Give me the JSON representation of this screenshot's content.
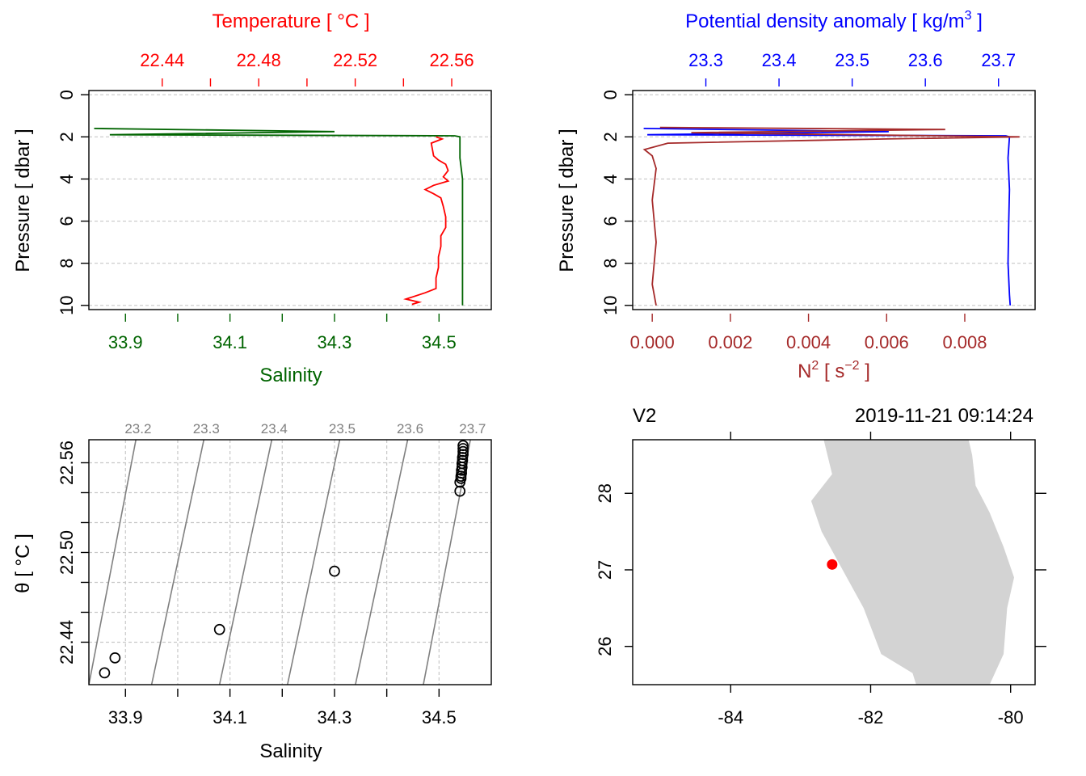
{
  "colors": {
    "temperature": "#ff0000",
    "salinity": "#006400",
    "density": "#0000ff",
    "n2": "#a52a2a",
    "isopycnal": "#808080",
    "grid": "#c8c8c8",
    "land": "#d3d3d3",
    "station": "#ff0000"
  },
  "chart_data": [
    {
      "id": "ts_profile",
      "type": "line",
      "title_top": "Temperature [ °C ]",
      "xlabel_bottom": "Salinity",
      "ylabel": "Pressure [ dbar ]",
      "ylim": [
        10.2,
        -0.2
      ],
      "yticks": [
        0,
        2,
        4,
        6,
        8,
        10
      ],
      "temperature_axis": {
        "lim": [
          22.4096,
          22.5764
        ],
        "ticks": [
          22.44,
          22.46,
          22.48,
          22.5,
          22.52,
          22.54,
          22.56
        ],
        "labels": [
          "22.44",
          "22.48",
          "22.52",
          "22.56"
        ]
      },
      "salinity_axis": {
        "lim": [
          33.83,
          34.6
        ],
        "ticks": [
          33.9,
          34.0,
          34.1,
          34.2,
          34.3,
          34.4,
          34.5
        ],
        "labels": [
          "33.9",
          "34.1",
          "34.3",
          "34.5"
        ]
      },
      "series": [
        {
          "name": "Salinity",
          "axis": "salinity",
          "points": [
            [
              33.84,
              1.6
            ],
            [
              34.3,
              1.75
            ],
            [
              33.87,
              1.9
            ],
            [
              34.53,
              1.95
            ],
            [
              34.54,
              2.0
            ],
            [
              34.54,
              3.0
            ],
            [
              34.545,
              4.0
            ],
            [
              34.545,
              6.0
            ],
            [
              34.545,
              8.0
            ],
            [
              34.545,
              10.0
            ]
          ]
        },
        {
          "name": "Temperature",
          "axis": "temperature",
          "points": [
            [
              22.5535,
              2.0
            ],
            [
              22.556,
              2.1
            ],
            [
              22.5515,
              2.3
            ],
            [
              22.552,
              2.6
            ],
            [
              22.5525,
              2.9
            ],
            [
              22.5545,
              3.1
            ],
            [
              22.5575,
              3.3
            ],
            [
              22.5585,
              3.6
            ],
            [
              22.5565,
              3.9
            ],
            [
              22.5585,
              4.1
            ],
            [
              22.5525,
              4.3
            ],
            [
              22.549,
              4.5
            ],
            [
              22.5525,
              4.7
            ],
            [
              22.5555,
              4.9
            ],
            [
              22.5565,
              5.3
            ],
            [
              22.5575,
              5.8
            ],
            [
              22.5575,
              6.3
            ],
            [
              22.5555,
              6.7
            ],
            [
              22.5555,
              7.2
            ],
            [
              22.5545,
              7.7
            ],
            [
              22.5545,
              8.2
            ],
            [
              22.5535,
              8.7
            ],
            [
              22.5535,
              9.2
            ],
            [
              22.549,
              9.4
            ],
            [
              22.541,
              9.7
            ],
            [
              22.5465,
              9.85
            ],
            [
              22.5435,
              9.95
            ]
          ]
        }
      ]
    },
    {
      "id": "density_profile",
      "type": "line",
      "title_top_prefix": "Potential density anomaly [ kg/m",
      "title_top_sup": "3",
      "title_top_suffix": " ]",
      "xlabel_bottom_prefix": "N",
      "xlabel_bottom_sup": "2",
      "xlabel_bottom_mid": " [ s",
      "xlabel_bottom_sup2": "−2",
      "xlabel_bottom_suffix": " ]",
      "ylabel": "Pressure [ dbar ]",
      "ylim": [
        10.2,
        -0.2
      ],
      "yticks": [
        0,
        2,
        4,
        6,
        8,
        10
      ],
      "density_axis": {
        "lim": [
          23.2,
          23.75
        ],
        "ticks": [
          23.3,
          23.4,
          23.5,
          23.6,
          23.7
        ],
        "labels": [
          "23.3",
          "23.4",
          "23.5",
          "23.6",
          "23.7"
        ]
      },
      "n2_axis": {
        "lim": [
          -0.0005,
          0.0098
        ],
        "ticks": [
          0.0,
          0.002,
          0.004,
          0.006,
          0.008
        ],
        "labels": [
          "0.000",
          "0.002",
          "0.004",
          "0.006",
          "0.008"
        ]
      },
      "series": [
        {
          "name": "Potential density anomaly",
          "axis": "density",
          "points": [
            [
              23.215,
              1.6
            ],
            [
              23.55,
              1.75
            ],
            [
              23.22,
              1.9
            ],
            [
              23.71,
              1.95
            ],
            [
              23.715,
              2.0
            ],
            [
              23.713,
              3.0
            ],
            [
              23.715,
              4.5
            ],
            [
              23.714,
              6.0
            ],
            [
              23.713,
              8.0
            ],
            [
              23.715,
              9.5
            ],
            [
              23.716,
              10.0
            ]
          ]
        },
        {
          "name": "N2",
          "axis": "n2",
          "points": [
            [
              0.0002,
              1.55
            ],
            [
              0.0075,
              1.65
            ],
            [
              0.001,
              1.8
            ],
            [
              0.0094,
              2.0
            ],
            [
              0.006,
              2.1
            ],
            [
              0.0004,
              2.3
            ],
            [
              -0.0002,
              2.6
            ],
            [
              0.0,
              2.9
            ],
            [
              0.0001,
              3.5
            ],
            [
              0.0,
              5.0
            ],
            [
              0.0001,
              7.0
            ],
            [
              0.0,
              9.0
            ],
            [
              0.0001,
              10.0
            ]
          ]
        }
      ]
    },
    {
      "id": "ts_diagram",
      "type": "scatter",
      "xlabel": "Salinity",
      "ylabel": "θ [ °C ]",
      "xlim": [
        33.83,
        34.6
      ],
      "ylim": [
        22.4116,
        22.5754
      ],
      "xticks": [
        33.9,
        34.0,
        34.1,
        34.2,
        34.3,
        34.4,
        34.5
      ],
      "xlabels": [
        "33.9",
        "34.1",
        "34.3",
        "34.5"
      ],
      "yticks": [
        22.44,
        22.46,
        22.48,
        22.5,
        22.52,
        22.54,
        22.56
      ],
      "ylabels": [
        "22.44",
        "22.50",
        "22.56"
      ],
      "isopycnal_labels": [
        "23.2",
        "23.3",
        "23.4",
        "23.5",
        "23.6",
        "23.7"
      ],
      "isopycnal_salinity_at_top": [
        33.92,
        34.05,
        34.18,
        34.31,
        34.44,
        34.56
      ],
      "isopycnal_salinity_at_bottom": [
        33.83,
        33.95,
        34.08,
        34.21,
        34.34,
        34.47
      ],
      "points": [
        [
          33.86,
          22.4195
        ],
        [
          33.88,
          22.4295
        ],
        [
          34.08,
          22.4485
        ],
        [
          34.3,
          22.4875
        ],
        [
          34.54,
          22.541
        ],
        [
          34.54,
          22.547
        ],
        [
          34.542,
          22.5495
        ],
        [
          34.542,
          22.551
        ],
        [
          34.543,
          22.553
        ],
        [
          34.543,
          22.555
        ],
        [
          34.544,
          22.557
        ],
        [
          34.544,
          22.5595
        ],
        [
          34.545,
          22.5615
        ],
        [
          34.545,
          22.5635
        ],
        [
          34.546,
          22.5655
        ],
        [
          34.546,
          22.5675
        ],
        [
          34.546,
          22.5695
        ],
        [
          34.546,
          22.5715
        ]
      ]
    },
    {
      "id": "station_map",
      "type": "map",
      "station_name": "V2",
      "datetime": "2019-11-21 09:14:24",
      "lon_lim": [
        -85.4,
        -79.65
      ],
      "lat_lim": [
        25.5,
        28.7
      ],
      "lon_ticks": [
        -84,
        -82,
        -80
      ],
      "lon_labels": [
        "-84",
        "-82",
        "-80"
      ],
      "lat_ticks": [
        26,
        27,
        28
      ],
      "lat_labels": [
        "26",
        "27",
        "28"
      ],
      "land_polygon": [
        [
          -82.67,
          28.7
        ],
        [
          -82.55,
          28.25
        ],
        [
          -82.85,
          27.9
        ],
        [
          -82.7,
          27.5
        ],
        [
          -82.4,
          27.0
        ],
        [
          -82.1,
          26.5
        ],
        [
          -81.85,
          25.9
        ],
        [
          -81.4,
          25.65
        ],
        [
          -81.35,
          25.5
        ],
        [
          -80.3,
          25.5
        ],
        [
          -80.1,
          25.9
        ],
        [
          -80.05,
          26.5
        ],
        [
          -79.95,
          26.9
        ],
        [
          -80.1,
          27.3
        ],
        [
          -80.3,
          27.75
        ],
        [
          -80.5,
          28.1
        ],
        [
          -80.55,
          28.5
        ],
        [
          -80.6,
          28.7
        ]
      ],
      "station": {
        "lon": -82.55,
        "lat": 27.07
      }
    }
  ]
}
